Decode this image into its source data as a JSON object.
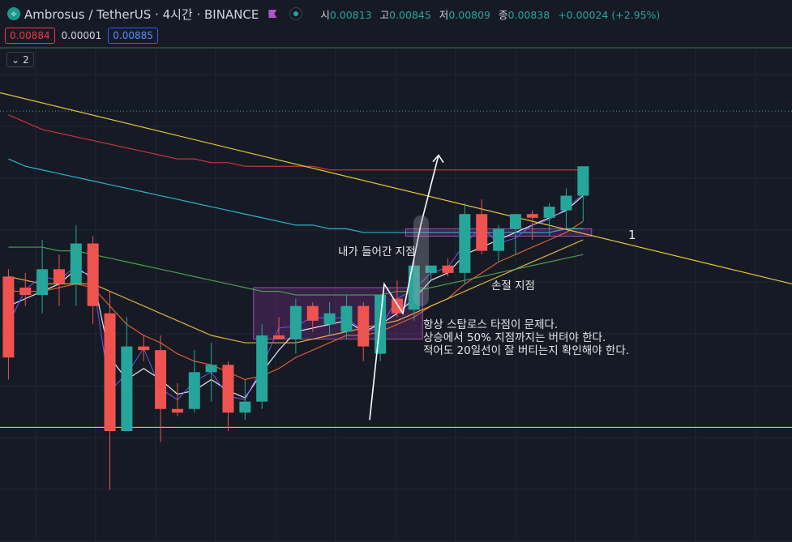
{
  "header": {
    "logo_glyph": "⟡",
    "symbol_title": "Ambrosus / TetherUS · 4시간 · BINANCE",
    "open_label": "시",
    "open_value": "0.00813",
    "high_label": "고",
    "high_value": "0.00845",
    "low_label": "저",
    "low_value": "0.00809",
    "close_label": "종",
    "close_value": "0.00838",
    "change": "+0.00024 (+2.95%)"
  },
  "prices": {
    "sell": "0.00884",
    "spread": "0.00001",
    "buy": "0.00885"
  },
  "indicators_toggle": {
    "icon": "chevron-down-icon",
    "glyph": "⌄",
    "count": "2"
  },
  "annotations": {
    "entry_label": "내가 들어간 지점",
    "stop_label": "손절 지점",
    "box_number": "1",
    "note_line1": "항상 스탑로스 타점이 문제다.",
    "note_line2": "상승에서 50% 지점까지는 버텨야 한다.",
    "note_line3": "적어도 20일선이 잘 버티는지 확인해야 한다."
  },
  "colors": {
    "background": "#161a25",
    "up": "#26a69a",
    "down": "#ef5350",
    "trendline": "#e8c63c",
    "box_fill": "#6a2d7a",
    "box_border": "#9c4fb3",
    "ma_fast": "#ffffff",
    "ma_purple": "#7b5cff",
    "ma_orange": "#f0682f",
    "ma_yellow": "#f5c342",
    "ma_green": "#4caf50",
    "ma_cyan": "#2ec4e0",
    "ma_red": "#d63a3a"
  },
  "chart_data": {
    "type": "candlestick",
    "series": [
      {
        "name": "candles",
        "values": [
          {
            "o": 0.00828,
            "h": 0.0083,
            "l": 0.008,
            "c": 0.00806
          },
          {
            "o": 0.00825,
            "h": 0.00829,
            "l": 0.0082,
            "c": 0.00823
          },
          {
            "o": 0.00823,
            "h": 0.00838,
            "l": 0.00818,
            "c": 0.0083
          },
          {
            "o": 0.0083,
            "h": 0.00834,
            "l": 0.0082,
            "c": 0.00826
          },
          {
            "o": 0.00826,
            "h": 0.00842,
            "l": 0.0082,
            "c": 0.00837
          },
          {
            "o": 0.00837,
            "h": 0.00839,
            "l": 0.00815,
            "c": 0.0082
          },
          {
            "o": 0.00818,
            "h": 0.00824,
            "l": 0.0077,
            "c": 0.00786
          },
          {
            "o": 0.00786,
            "h": 0.00817,
            "l": 0.00786,
            "c": 0.00809
          },
          {
            "o": 0.00809,
            "h": 0.00812,
            "l": 0.00805,
            "c": 0.00808
          },
          {
            "o": 0.00808,
            "h": 0.00812,
            "l": 0.00783,
            "c": 0.00792
          },
          {
            "o": 0.00792,
            "h": 0.00799,
            "l": 0.0079,
            "c": 0.00791
          },
          {
            "o": 0.00792,
            "h": 0.00808,
            "l": 0.00791,
            "c": 0.00802
          },
          {
            "o": 0.00802,
            "h": 0.0081,
            "l": 0.00794,
            "c": 0.00804
          },
          {
            "o": 0.00804,
            "h": 0.00805,
            "l": 0.00786,
            "c": 0.00791
          },
          {
            "o": 0.00791,
            "h": 0.008,
            "l": 0.00789,
            "c": 0.00794
          },
          {
            "o": 0.00794,
            "h": 0.00815,
            "l": 0.00792,
            "c": 0.00812
          },
          {
            "o": 0.00812,
            "h": 0.00817,
            "l": 0.00811,
            "c": 0.00811
          },
          {
            "o": 0.00811,
            "h": 0.00822,
            "l": 0.00807,
            "c": 0.0082
          },
          {
            "o": 0.0082,
            "h": 0.00821,
            "l": 0.00813,
            "c": 0.00816
          },
          {
            "o": 0.00815,
            "h": 0.00821,
            "l": 0.00812,
            "c": 0.00818
          },
          {
            "o": 0.00813,
            "h": 0.00823,
            "l": 0.00811,
            "c": 0.0082
          },
          {
            "o": 0.0082,
            "h": 0.00821,
            "l": 0.00805,
            "c": 0.00809
          },
          {
            "o": 0.00807,
            "h": 0.00823,
            "l": 0.00805,
            "c": 0.00823
          },
          {
            "o": 0.00822,
            "h": 0.00827,
            "l": 0.00817,
            "c": 0.00818
          },
          {
            "o": 0.00819,
            "h": 0.00833,
            "l": 0.00816,
            "c": 0.00831
          },
          {
            "o": 0.00829,
            "h": 0.00831,
            "l": 0.00827,
            "c": 0.00831
          },
          {
            "o": 0.00831,
            "h": 0.00833,
            "l": 0.00828,
            "c": 0.00829
          },
          {
            "o": 0.00829,
            "h": 0.00848,
            "l": 0.00826,
            "c": 0.00845
          },
          {
            "o": 0.00845,
            "h": 0.00849,
            "l": 0.00834,
            "c": 0.00835
          },
          {
            "o": 0.00835,
            "h": 0.00842,
            "l": 0.00832,
            "c": 0.00841
          },
          {
            "o": 0.00841,
            "h": 0.00843,
            "l": 0.00834,
            "c": 0.00845
          },
          {
            "o": 0.00845,
            "h": 0.00846,
            "l": 0.00838,
            "c": 0.00844
          },
          {
            "o": 0.00844,
            "h": 0.00848,
            "l": 0.00839,
            "c": 0.00847
          },
          {
            "o": 0.00846,
            "h": 0.00852,
            "l": 0.00841,
            "c": 0.0085
          },
          {
            "o": 0.0085,
            "h": 0.00858,
            "l": 0.00843,
            "c": 0.00858
          }
        ]
      },
      {
        "name": "MA fast",
        "values": [
          0.0082,
          0.00822,
          0.00824,
          0.00826,
          0.0083,
          0.00828,
          0.00806,
          0.008,
          0.00803,
          0.008,
          0.00796,
          0.00797,
          0.008,
          0.00797,
          0.00795,
          0.00802,
          0.00808,
          0.00813,
          0.00814,
          0.00815,
          0.00816,
          0.00813,
          0.00815,
          0.00818,
          0.00822,
          0.00827,
          0.00829,
          0.00834,
          0.00836,
          0.00838,
          0.0084,
          0.00842,
          0.00844,
          0.00846,
          0.0085
        ]
      },
      {
        "name": "MA orange",
        "values": [
          0.00824,
          0.00824,
          0.00824,
          0.00825,
          0.00826,
          0.00825,
          0.0082,
          0.00815,
          0.00812,
          0.0081,
          0.00807,
          0.00805,
          0.00804,
          0.00802,
          0.008,
          0.00801,
          0.00803,
          0.00806,
          0.00808,
          0.0081,
          0.00812,
          0.00812,
          0.00813,
          0.00815,
          0.00817,
          0.0082,
          0.00822,
          0.00826,
          0.00829,
          0.00832,
          0.00834,
          0.00836,
          0.00838,
          0.0084,
          0.00843
        ]
      },
      {
        "name": "MA yellow",
        "values": [
          0.00828,
          0.00827,
          0.00826,
          0.00826,
          0.00826,
          0.00826,
          0.00824,
          0.00822,
          0.0082,
          0.00818,
          0.00816,
          0.00814,
          0.00812,
          0.00811,
          0.0081,
          0.0081,
          0.0081,
          0.0081,
          0.00811,
          0.00812,
          0.00813,
          0.00814,
          0.00815,
          0.00816,
          0.00818,
          0.0082,
          0.00822,
          0.00824,
          0.00826,
          0.00828,
          0.0083,
          0.00832,
          0.00834,
          0.00836,
          0.00838
        ]
      },
      {
        "name": "MA green",
        "values": [
          0.00836,
          0.00836,
          0.00836,
          0.00835,
          0.00835,
          0.00834,
          0.00833,
          0.00832,
          0.00831,
          0.0083,
          0.00829,
          0.00828,
          0.00827,
          0.00826,
          0.00825,
          0.00824,
          0.00824,
          0.00823,
          0.00823,
          0.00823,
          0.00823,
          0.00823,
          0.00823,
          0.00824,
          0.00824,
          0.00825,
          0.00826,
          0.00827,
          0.00828,
          0.00829,
          0.0083,
          0.00831,
          0.00832,
          0.00833,
          0.00834
        ]
      },
      {
        "name": "MA cyan",
        "values": [
          0.0086,
          0.00858,
          0.00857,
          0.00856,
          0.00855,
          0.00854,
          0.00853,
          0.00852,
          0.00851,
          0.0085,
          0.00849,
          0.00848,
          0.00847,
          0.00846,
          0.00845,
          0.00844,
          0.00843,
          0.00842,
          0.00842,
          0.00841,
          0.00841,
          0.0084,
          0.0084,
          0.0084,
          0.0084,
          0.0084,
          0.0084,
          0.0084,
          0.0084,
          0.0084,
          0.0084,
          0.0084,
          0.0084,
          0.00841,
          0.00841
        ]
      },
      {
        "name": "MA red",
        "values": [
          0.00872,
          0.0087,
          0.00868,
          0.00867,
          0.00866,
          0.00865,
          0.00864,
          0.00863,
          0.00862,
          0.00861,
          0.0086,
          0.0086,
          0.00859,
          0.00859,
          0.00858,
          0.00858,
          0.00858,
          0.00858,
          0.00858,
          0.00857,
          0.00857,
          0.00857,
          0.00857,
          0.00857,
          0.00857,
          0.00857,
          0.00857,
          0.00857,
          0.00857,
          0.00857,
          0.00857,
          0.00857,
          0.00857,
          0.00857,
          0.00857
        ]
      }
    ],
    "trendline": {
      "start": 0.00878,
      "end": 0.00826
    },
    "horizontal_lines": [
      0.00787,
      0.00873
    ],
    "zones": [
      {
        "from_candle": 15,
        "to_candle": 25,
        "high": 0.00825,
        "low": 0.00811
      },
      {
        "from_candle": 24,
        "to_candle": 35,
        "high": 0.00841,
        "low": 0.00839
      }
    ]
  }
}
